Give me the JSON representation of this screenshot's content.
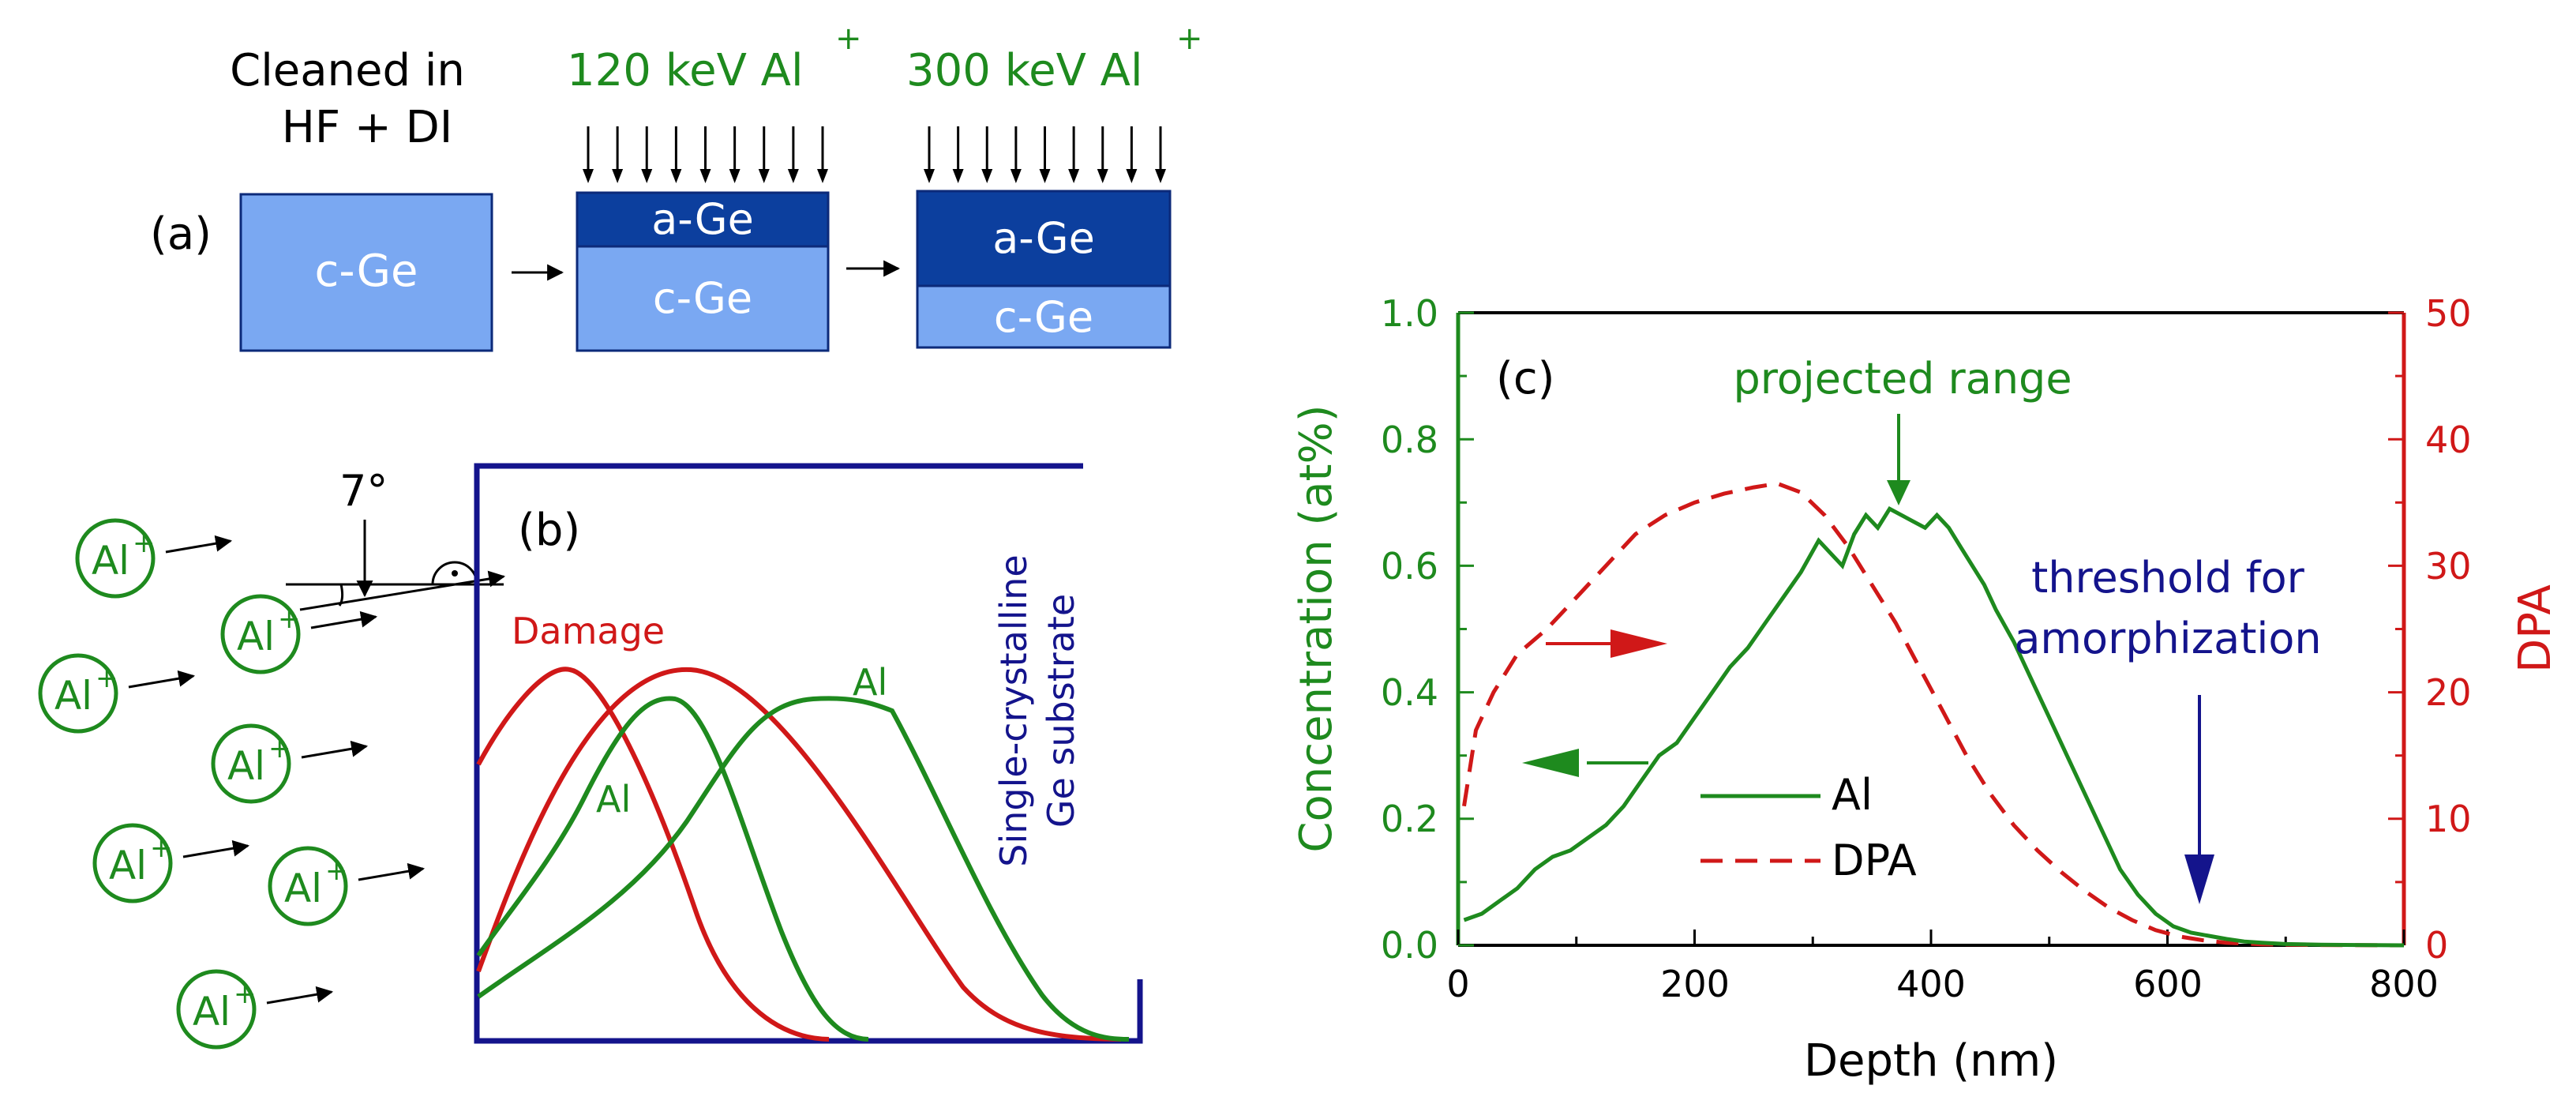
{
  "colors": {
    "green": "#1e8a1e",
    "red": "#d01818",
    "navy": "#14148c",
    "blue_dark": "#0c3f9e",
    "blue_light": "#7aa8f2",
    "black": "#000000"
  },
  "panel_a": {
    "label": "(a)",
    "step1_title_line1": "Cleaned in",
    "step1_title_line2": "HF + DI",
    "step2_title": "120 keV Al",
    "step3_title": "300 keV Al",
    "ion_charge": "+",
    "box1_label": "c-Ge",
    "box2_top_label": "a-Ge",
    "box2_bottom_label": "c-Ge",
    "box3_top_label": "a-Ge",
    "box3_bottom_label": "c-Ge"
  },
  "panel_b": {
    "label": "(b)",
    "angle_label": "7°",
    "ion_symbol": "Al",
    "ion_charge": "+",
    "damage_label": "Damage",
    "al_label_1": "Al",
    "al_label_2": "Al",
    "substrate_line1": "Single-crystalline",
    "substrate_line2": "Ge substrate"
  },
  "chart_data": {
    "type": "line",
    "panel_label": "(c)",
    "xlabel": "Depth (nm)",
    "ylabel_left": "Concentration (at%)",
    "ylabel_right": "DPA",
    "xlim": [
      0,
      800
    ],
    "ylim_left": [
      0,
      1.0
    ],
    "ylim_right": [
      0,
      50
    ],
    "xticks": [
      "0",
      "200",
      "400",
      "600",
      "800"
    ],
    "yticks_left": [
      "0.0",
      "0.2",
      "0.4",
      "0.6",
      "0.8",
      "1.0"
    ],
    "yticks_right": [
      "0",
      "10",
      "20",
      "30",
      "40",
      "50"
    ],
    "annotations": {
      "projected_range": "projected range",
      "threshold_line1": "threshold for",
      "threshold_line2": "amorphization"
    },
    "legend": [
      "Al",
      "DPA"
    ],
    "series": [
      {
        "name": "Al",
        "axis": "left",
        "x": [
          5,
          20,
          35,
          50,
          65,
          80,
          95,
          110,
          125,
          140,
          155,
          170,
          185,
          200,
          215,
          230,
          245,
          260,
          275,
          290,
          305,
          315,
          325,
          335,
          345,
          355,
          365,
          375,
          385,
          395,
          405,
          415,
          425,
          435,
          445,
          455,
          470,
          485,
          500,
          515,
          530,
          545,
          560,
          575,
          590,
          605,
          620,
          635,
          650,
          665,
          680,
          700,
          730,
          760,
          800
        ],
        "y": [
          0.04,
          0.05,
          0.07,
          0.09,
          0.12,
          0.14,
          0.15,
          0.17,
          0.19,
          0.22,
          0.26,
          0.3,
          0.32,
          0.36,
          0.4,
          0.44,
          0.47,
          0.51,
          0.55,
          0.59,
          0.64,
          0.62,
          0.6,
          0.65,
          0.68,
          0.66,
          0.69,
          0.68,
          0.67,
          0.66,
          0.68,
          0.66,
          0.63,
          0.6,
          0.57,
          0.53,
          0.48,
          0.42,
          0.36,
          0.3,
          0.24,
          0.18,
          0.12,
          0.08,
          0.05,
          0.03,
          0.02,
          0.015,
          0.01,
          0.006,
          0.004,
          0.002,
          0.001,
          0.0005,
          0.0
        ]
      },
      {
        "name": "DPA",
        "axis": "right",
        "x": [
          5,
          15,
          30,
          50,
          75,
          100,
          125,
          150,
          175,
          200,
          225,
          250,
          270,
          290,
          310,
          330,
          350,
          370,
          390,
          410,
          430,
          450,
          470,
          490,
          510,
          530,
          550,
          570,
          590,
          610,
          630,
          650,
          680,
          720,
          760,
          800
        ],
        "y": [
          11,
          17,
          20,
          23,
          25,
          27.5,
          30,
          32.5,
          34,
          35,
          35.7,
          36.2,
          36.5,
          35.8,
          34,
          31.5,
          28.5,
          25.5,
          22,
          18.5,
          15,
          12,
          9.5,
          7.5,
          5.8,
          4.3,
          3,
          2,
          1.2,
          0.7,
          0.4,
          0.2,
          0.08,
          0.03,
          0.01,
          0.0
        ]
      }
    ]
  }
}
